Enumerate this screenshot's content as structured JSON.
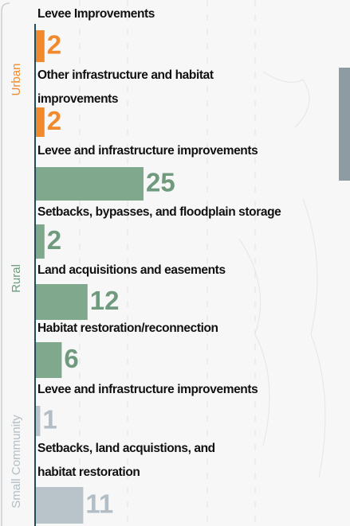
{
  "chart_data": {
    "type": "bar",
    "orientation": "horizontal",
    "groups": [
      {
        "name": "Urban",
        "color": "#f08a2c",
        "label_color": "#f08a2c",
        "categories": [
          [
            "Levee Improvements"
          ],
          [
            "Other infrastructure and habitat",
            "improvements"
          ]
        ],
        "values": [
          2,
          2
        ]
      },
      {
        "name": "Rural",
        "color": "#7fa88c",
        "label_color": "#6f9a7e",
        "categories": [
          [
            "Levee and infrastructure improvements"
          ],
          [
            "Setbacks, bypasses, and floodplain storage"
          ],
          [
            "Land acquisitions and easements"
          ],
          [
            "Habitat restoration/reconnection"
          ]
        ],
        "values": [
          25,
          2,
          12,
          6
        ]
      },
      {
        "name": "Small Community",
        "color": "#b9c3ca",
        "label_color": "#b2bdc5",
        "categories": [
          [
            "Levee and infrastructure improvements"
          ],
          [
            "Setbacks, land acquistions, and",
            "habitat restoration"
          ]
        ],
        "values": [
          1,
          11
        ]
      }
    ]
  }
}
